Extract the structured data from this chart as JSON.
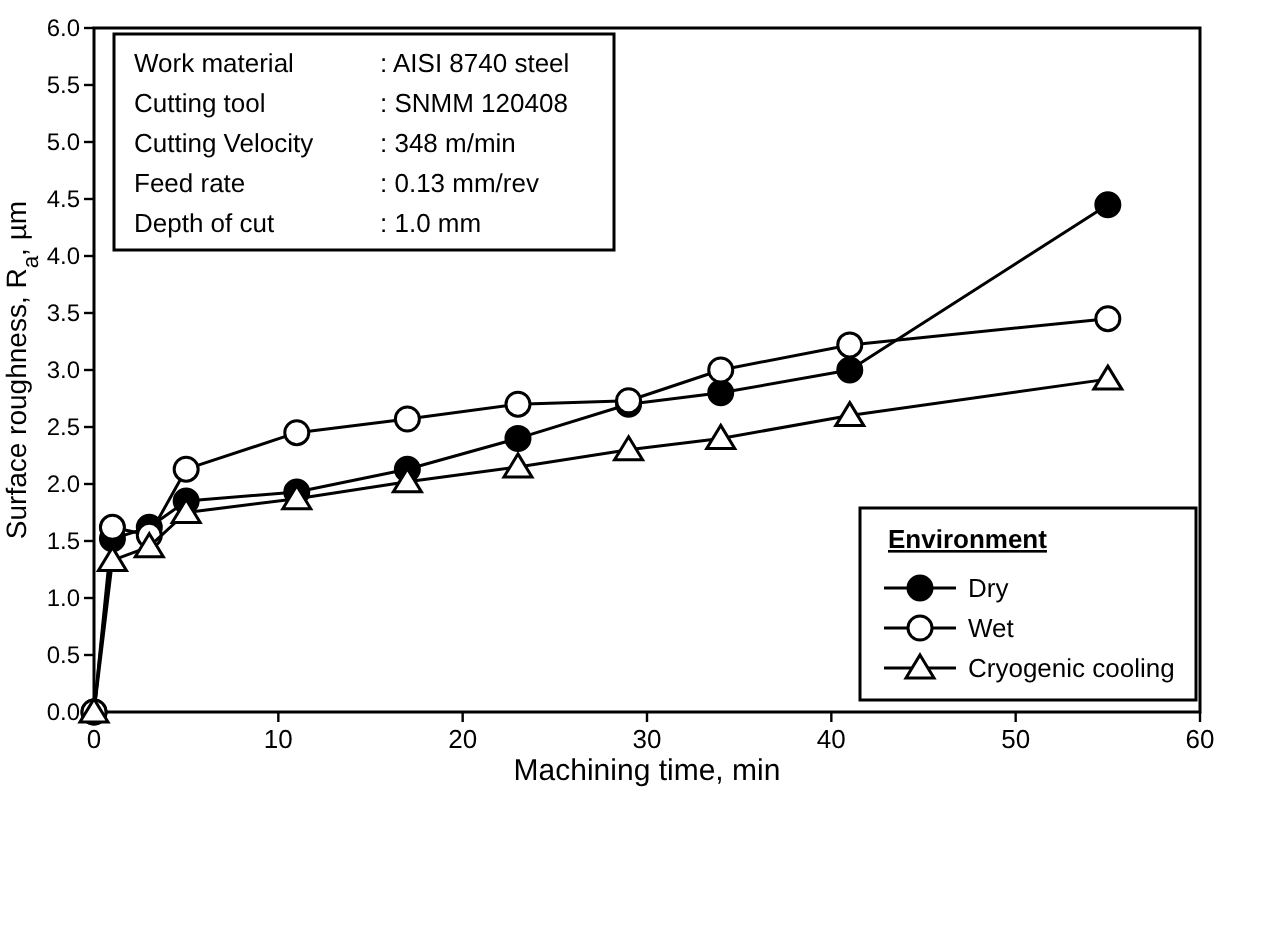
{
  "chart_data": {
    "type": "line",
    "xlabel": "Machining time, min",
    "ylabel": "Surface roughness, R$_{a}$, µm",
    "legend_title": "Environment",
    "legend": "bottom right",
    "grid": false,
    "x": [
      0,
      1,
      3,
      5,
      11,
      17,
      23,
      29,
      34,
      41,
      55
    ],
    "xlim": [
      0,
      60
    ],
    "xticks": [
      0,
      10,
      20,
      30,
      40,
      50,
      60
    ],
    "ylim": [
      0,
      6
    ],
    "yticks": [
      {
        "value": 0,
        "label": "0.0"
      },
      {
        "value": 0.5,
        "label": "0.5"
      },
      {
        "value": 1,
        "label": "1.0"
      },
      {
        "value": 1.5,
        "label": "1.5"
      },
      {
        "value": 2,
        "label": "2.0"
      },
      {
        "value": 2.5,
        "label": "2.5"
      },
      {
        "value": 3,
        "label": "3.0"
      },
      {
        "value": 3.5,
        "label": "3.5"
      },
      {
        "value": 4,
        "label": "4.0"
      },
      {
        "value": 4.5,
        "label": "4.5"
      },
      {
        "value": 5,
        "label": "5.0"
      },
      {
        "value": 5.5,
        "label": "5.5"
      },
      {
        "value": 6,
        "label": "6.0"
      }
    ],
    "series": [
      {
        "name": "Dry",
        "color": "#000000",
        "marker": "circle",
        "values": [
          0,
          1.52,
          1.62,
          1.85,
          1.93,
          2.13,
          2.4,
          2.7,
          2.8,
          3.0,
          4.45
        ]
      },
      {
        "name": "Wet",
        "color": "#000000",
        "marker": "circle",
        "values": [
          0,
          1.62,
          1.55,
          2.13,
          2.45,
          2.57,
          2.7,
          2.73,
          3.0,
          3.22,
          3.45
        ]
      },
      {
        "name": "Cryogenic cooling",
        "color": "#000000",
        "marker": "triangle",
        "values": [
          0,
          1.33,
          1.45,
          1.75,
          1.87,
          2.02,
          2.15,
          2.3,
          2.4,
          2.6,
          2.92
        ]
      }
    ],
    "annotations": [
      "Work material : AISI 8740 steel",
      "Cutting tool : SNMM 120408",
      "Cutting Velocity : 348 m/min",
      "Feed rate : 0.13 mm/rev",
      "Depth of cut : 1.0 mm"
    ]
  }
}
